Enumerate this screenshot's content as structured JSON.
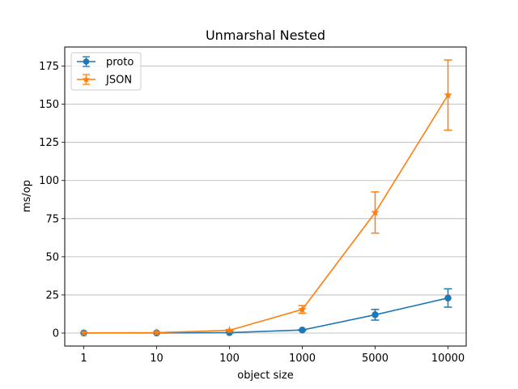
{
  "chart_data": {
    "type": "line",
    "title": "Unmarshal Nested",
    "xlabel": "object size",
    "ylabel": "ms/op",
    "categories": [
      "1",
      "10",
      "100",
      "1000",
      "5000",
      "10000"
    ],
    "ylim": [
      -8.5,
      187.5
    ],
    "yticks": [
      0,
      25,
      50,
      75,
      100,
      125,
      150,
      175
    ],
    "grid": "y",
    "legend_position": "top-left",
    "series": [
      {
        "name": "proto",
        "color": "#1f77b4",
        "marker": "circle",
        "values": [
          0.05,
          0.1,
          0.3,
          2.0,
          12.0,
          23.0
        ],
        "errors": [
          0.0,
          0.0,
          0.1,
          0.3,
          3.5,
          6.0
        ]
      },
      {
        "name": "JSON",
        "color": "#ff7f0e",
        "marker": "star",
        "values": [
          0.1,
          0.3,
          1.8,
          15.5,
          79.0,
          156.0
        ],
        "errors": [
          0.0,
          0.0,
          0.3,
          2.5,
          13.5,
          23.0
        ]
      }
    ]
  }
}
